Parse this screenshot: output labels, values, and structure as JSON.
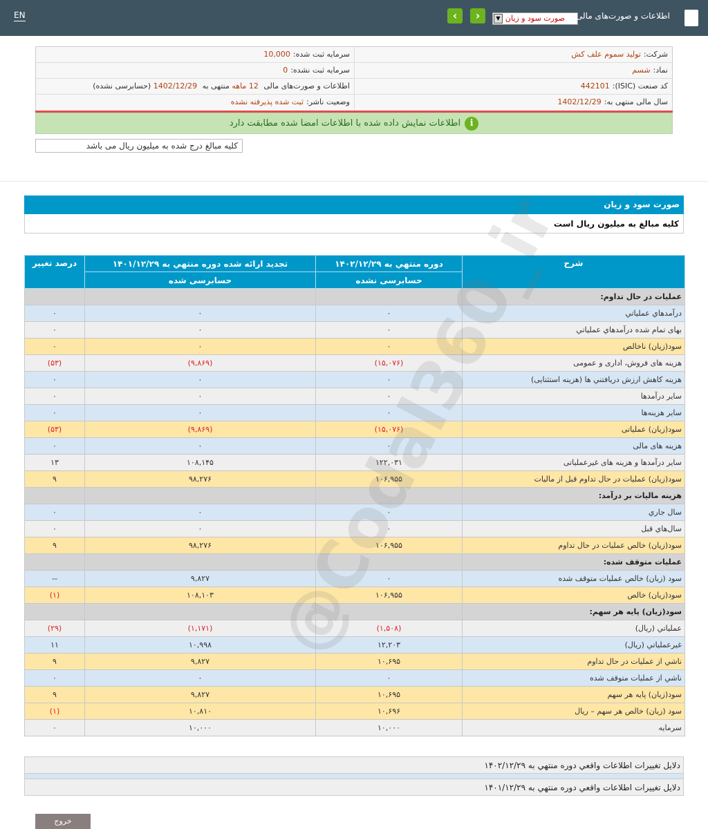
{
  "header": {
    "lang": "EN",
    "title": "اطلاعات و صورت‌های مالی",
    "report_select": "صورت سود و زیان",
    "prev": "‹",
    "next": "›"
  },
  "info": {
    "company_label": "شرکت:",
    "company": "تولید سموم علف کش",
    "registered_capital_label": "سرمایه ثبت شده:",
    "registered_capital": "10,000",
    "symbol_label": "نماد:",
    "symbol": "شسم",
    "unregistered_capital_label": "سرمایه ثبت نشده:",
    "unregistered_capital": "0",
    "isic_label": "کد صنعت (ISIC):",
    "isic": "442101",
    "period_label": "اطلاعات و صورت‌های مالی",
    "period_months": "12 ماهه",
    "period_mid": "منتهی به",
    "period_date": "1402/12/29",
    "period_status": "(حسابرسی نشده)",
    "fiscal_label": "سال مالی منتهی به:",
    "fiscal": "1402/12/29",
    "publisher_label": "وضعیت ناشر:",
    "publisher": "ثبت شده پذیرفته نشده"
  },
  "banner": "اطلاعات نمایش داده شده با اطلاعات امضا شده مطابقت دارد",
  "note": "کلیه مبالغ درج شده به میلیون ریال می باشد",
  "section": {
    "title": "صورت سود و زیان",
    "subtitle": "کلیه مبالغ به میلیون ریال است"
  },
  "watermark": "@Codal360_ir",
  "table": {
    "headers": {
      "desc": "شرح",
      "c1": "دوره منتهي به ۱۴۰۲/۱۲/۲۹",
      "c2": "تجديد ارائه شده دوره منتهي به ۱۴۰۱/۱۲/۲۹",
      "c3": "درصد تغيير",
      "c1_sub": "حسابرسی نشده",
      "c2_sub": "حسابرسی شده"
    },
    "rows": [
      {
        "t": "sec",
        "d": "عمليات در حال تداوم:",
        "a": "",
        "b": "",
        "c": ""
      },
      {
        "t": "b",
        "d": "درآمدهاي عملياتي",
        "a": "۰",
        "b": "۰",
        "c": "۰"
      },
      {
        "t": "l",
        "d": "بهاى تمام شده درآمدهاي عملياتي",
        "a": "۰",
        "b": "۰",
        "c": "۰"
      },
      {
        "t": "y",
        "d": "سود(زيان) ناخالص",
        "a": "۰",
        "b": "۰",
        "c": "۰"
      },
      {
        "t": "l",
        "d": "هزينه هاى فروش، ادارى و عمومى",
        "a": "(۱۵,۰۷۶)",
        "b": "(۹,۸۶۹)",
        "c": "(۵۳)"
      },
      {
        "t": "b",
        "d": "هزينه كاهش ارزش دريافتني ها (هزينه استثنايى)",
        "a": "۰",
        "b": "۰",
        "c": "۰"
      },
      {
        "t": "l",
        "d": "ساير درآمدها",
        "a": "۰",
        "b": "۰",
        "c": "۰"
      },
      {
        "t": "b",
        "d": "ساير هزينه‌ها",
        "a": "۰",
        "b": "۰",
        "c": "۰"
      },
      {
        "t": "y",
        "d": "سود(زيان) عملياتى",
        "a": "(۱۵,۰۷۶)",
        "b": "(۹,۸۶۹)",
        "c": "(۵۳)"
      },
      {
        "t": "b",
        "d": "هزينه هاى مالى",
        "a": "۰",
        "b": "۰",
        "c": "۰"
      },
      {
        "t": "l",
        "d": "ساير درآمدها و هزينه هاى غيرعملياتى",
        "a": "۱۲۲,۰۳۱",
        "b": "۱۰۸,۱۴۵",
        "c": "۱۳"
      },
      {
        "t": "y",
        "d": "سود(زيان) عمليات در حال تداوم قبل از ماليات",
        "a": "۱۰۶,۹۵۵",
        "b": "۹۸,۲۷۶",
        "c": "۹"
      },
      {
        "t": "sec",
        "d": "هزينه ماليات بر درآمد:",
        "a": "",
        "b": "",
        "c": ""
      },
      {
        "t": "b",
        "d": "سال جاري",
        "a": "۰",
        "b": "۰",
        "c": "۰"
      },
      {
        "t": "l",
        "d": "سال‌هاي قبل",
        "a": "۰",
        "b": "۰",
        "c": "۰"
      },
      {
        "t": "y",
        "d": "سود(زيان) خالص عمليات در حال تداوم",
        "a": "۱۰۶,۹۵۵",
        "b": "۹۸,۲۷۶",
        "c": "۹"
      },
      {
        "t": "sec",
        "d": "عمليات متوقف شده:",
        "a": "",
        "b": "",
        "c": ""
      },
      {
        "t": "b",
        "d": "سود (زيان) خالص عمليات متوقف شده",
        "a": "۰",
        "b": "۹,۸۲۷",
        "c": "--"
      },
      {
        "t": "y",
        "d": "سود(زيان) خالص",
        "a": "۱۰۶,۹۵۵",
        "b": "۱۰۸,۱۰۳",
        "c": "(۱)"
      },
      {
        "t": "sec",
        "d": "سود(زيان) پايه هر سهم:",
        "a": "",
        "b": "",
        "c": ""
      },
      {
        "t": "l",
        "d": "عملياتي (ريال)",
        "a": "(۱,۵۰۸)",
        "b": "(۱,۱۷۱)",
        "c": "(۲۹)"
      },
      {
        "t": "b",
        "d": "غيرعملياتي (ريال)",
        "a": "۱۲,۲۰۳",
        "b": "۱۰,۹۹۸",
        "c": "۱۱"
      },
      {
        "t": "y",
        "d": "ناشي از عمليات در حال تداوم",
        "a": "۱۰,۶۹۵",
        "b": "۹,۸۲۷",
        "c": "۹"
      },
      {
        "t": "b",
        "d": "ناشي از عمليات متوقف شده",
        "a": "۰",
        "b": "۰",
        "c": "۰"
      },
      {
        "t": "y",
        "d": "سود(زيان) پايه هر سهم",
        "a": "۱۰,۶۹۵",
        "b": "۹,۸۲۷",
        "c": "۹"
      },
      {
        "t": "y",
        "d": "سود (زيان) خالص هر سهم – ريال",
        "a": "۱۰,۶۹۶",
        "b": "۱۰,۸۱۰",
        "c": "(۱)"
      },
      {
        "t": "l",
        "d": "سرمايه",
        "a": "۱۰,۰۰۰",
        "b": "۱۰,۰۰۰",
        "c": "۰"
      }
    ]
  },
  "footer": {
    "reason1": "دلايل تغييرات اطلاعات واقعي دوره منتهي به ۱۴۰۲/۱۲/۲۹",
    "reason2": "دلايل تغييرات اطلاعات واقعي دوره منتهي به ۱۴۰۱/۱۲/۲۹",
    "exit": "خروج"
  },
  "colors": {
    "header": "#3f5461",
    "accent": "#0098c8",
    "green": "#6cb31f",
    "negative": "#e02020"
  }
}
